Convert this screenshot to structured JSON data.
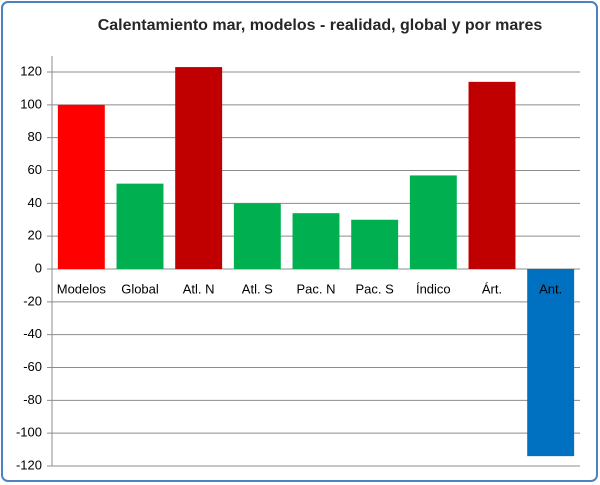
{
  "chart_data": {
    "type": "bar",
    "title": "Calentamiento mar, modelos - realidad, global y por mares",
    "categories": [
      "Modelos",
      "Global",
      "Atl. N",
      "Atl. S",
      "Pac. N",
      "Pac. S",
      "Índico",
      "Árt.",
      "Ant."
    ],
    "values": [
      100,
      52,
      123,
      40,
      34,
      30,
      57,
      114,
      -114
    ],
    "colors": [
      "#ff0000",
      "#00b050",
      "#c00000",
      "#00b050",
      "#00b050",
      "#00b050",
      "#00b050",
      "#c00000",
      "#0070c0"
    ],
    "ylim": [
      -120,
      120
    ],
    "yticks": [
      -120,
      -100,
      -80,
      -60,
      -40,
      -20,
      0,
      20,
      40,
      60,
      80,
      100,
      120
    ],
    "grid": true
  }
}
